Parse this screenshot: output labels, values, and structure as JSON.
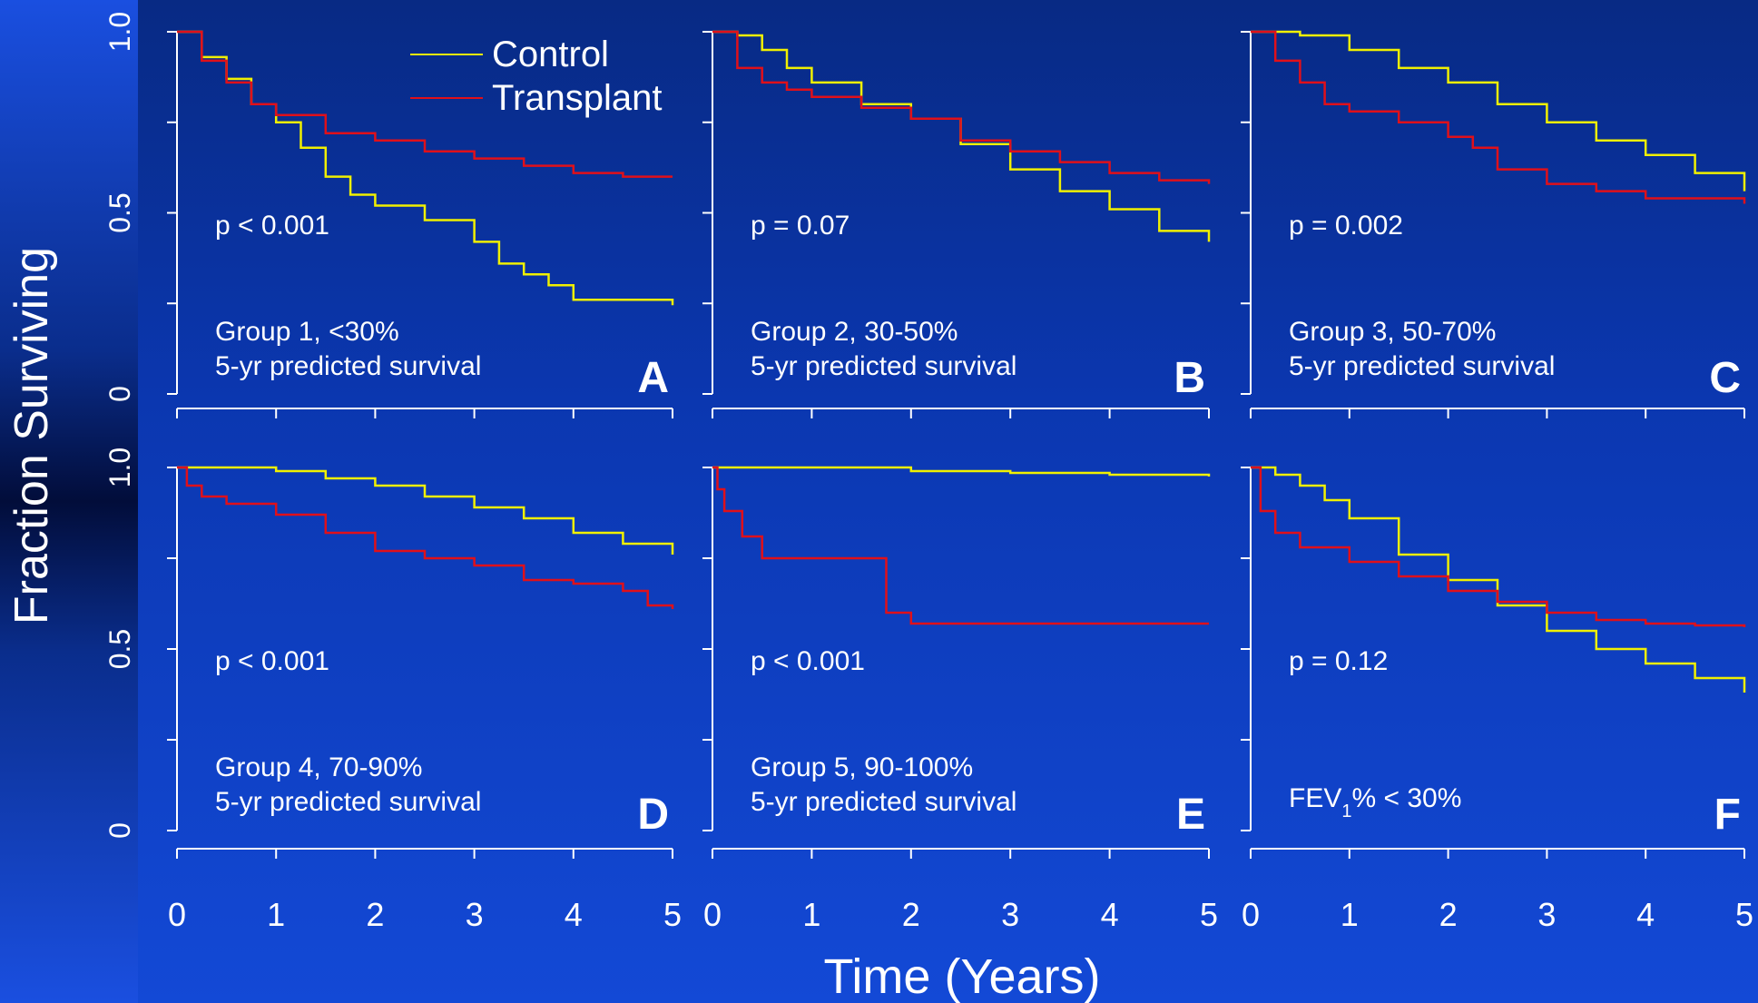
{
  "ylabel": "Fraction Surviving",
  "xlabel": "Time (Years)",
  "legend": {
    "control": "Control",
    "transplant": "Transplant"
  },
  "colors": {
    "control": "#f0f000",
    "transplant": "#e0101a",
    "axis": "#ffffff"
  },
  "chart_data": [
    {
      "type": "line",
      "panel": "A",
      "p": "p < 0.001",
      "group": "Group 1,  <30%",
      "group2": "5-yr predicted survival",
      "xlim": [
        0,
        5
      ],
      "ylim": [
        0,
        1
      ],
      "xticks": [
        "0",
        "1",
        "2",
        "3",
        "4",
        "5"
      ],
      "yticks": [
        "0",
        "0.5",
        "1.0"
      ],
      "series": [
        {
          "name": "Control",
          "x": [
            0,
            0.25,
            0.5,
            0.75,
            1.0,
            1.25,
            1.5,
            1.75,
            2.0,
            2.5,
            3.0,
            3.25,
            3.5,
            3.75,
            4.0,
            4.5,
            5.0
          ],
          "y": [
            1.0,
            0.93,
            0.87,
            0.8,
            0.75,
            0.68,
            0.6,
            0.55,
            0.52,
            0.48,
            0.42,
            0.36,
            0.33,
            0.3,
            0.26,
            0.26,
            0.245
          ]
        },
        {
          "name": "Transplant",
          "x": [
            0,
            0.25,
            0.5,
            0.75,
            1.0,
            1.5,
            2.0,
            2.5,
            3.0,
            3.5,
            4.0,
            4.5,
            5.0
          ],
          "y": [
            1.0,
            0.92,
            0.86,
            0.8,
            0.77,
            0.72,
            0.7,
            0.67,
            0.65,
            0.63,
            0.61,
            0.6,
            0.6
          ]
        }
      ]
    },
    {
      "type": "line",
      "panel": "B",
      "p": "p = 0.07",
      "group": "Group 2,  30-50%",
      "group2": "5-yr predicted survival",
      "xlim": [
        0,
        5
      ],
      "ylim": [
        0,
        1
      ],
      "xticks": [
        "0",
        "1",
        "2",
        "3",
        "4",
        "5"
      ],
      "yticks": [
        "0",
        "0.5",
        "1.0"
      ],
      "series": [
        {
          "name": "Control",
          "x": [
            0,
            0.25,
            0.5,
            0.75,
            1.0,
            1.5,
            2.0,
            2.5,
            3.0,
            3.5,
            4.0,
            4.5,
            5.0
          ],
          "y": [
            1.0,
            0.99,
            0.95,
            0.9,
            0.86,
            0.8,
            0.76,
            0.69,
            0.62,
            0.56,
            0.51,
            0.45,
            0.42
          ]
        },
        {
          "name": "Transplant",
          "x": [
            0,
            0.25,
            0.5,
            0.75,
            1.0,
            1.5,
            2.0,
            2.5,
            3.0,
            3.5,
            4.0,
            4.5,
            5.0
          ],
          "y": [
            1.0,
            0.9,
            0.86,
            0.84,
            0.82,
            0.79,
            0.76,
            0.7,
            0.67,
            0.64,
            0.61,
            0.59,
            0.58
          ]
        }
      ]
    },
    {
      "type": "line",
      "panel": "C",
      "p": "p = 0.002",
      "group": "Group 3,  50-70%",
      "group2": "5-yr predicted survival",
      "xlim": [
        0,
        5
      ],
      "ylim": [
        0,
        1
      ],
      "xticks": [
        "0",
        "1",
        "2",
        "3",
        "4",
        "5"
      ],
      "yticks": [
        "0",
        "0.5",
        "1.0"
      ],
      "series": [
        {
          "name": "Control",
          "x": [
            0,
            0.25,
            0.5,
            1.0,
            1.5,
            2.0,
            2.5,
            3.0,
            3.5,
            4.0,
            4.5,
            5.0
          ],
          "y": [
            1.0,
            1.0,
            0.99,
            0.95,
            0.9,
            0.86,
            0.8,
            0.75,
            0.7,
            0.66,
            0.61,
            0.56
          ]
        },
        {
          "name": "Transplant",
          "x": [
            0,
            0.25,
            0.5,
            0.75,
            1.0,
            1.5,
            2.0,
            2.25,
            2.5,
            3.0,
            3.5,
            4.0,
            5.0
          ],
          "y": [
            1.0,
            0.92,
            0.86,
            0.8,
            0.78,
            0.75,
            0.71,
            0.68,
            0.62,
            0.58,
            0.56,
            0.54,
            0.525
          ]
        }
      ]
    },
    {
      "type": "line",
      "panel": "D",
      "p": "p < 0.001",
      "group": "Group 4,  70-90%",
      "group2": "5-yr predicted survival",
      "xlim": [
        0,
        5
      ],
      "ylim": [
        0,
        1
      ],
      "xticks": [
        "0",
        "1",
        "2",
        "3",
        "4",
        "5"
      ],
      "yticks": [
        "0",
        "0.5",
        "1.0"
      ],
      "series": [
        {
          "name": "Control",
          "x": [
            0,
            0.5,
            1.0,
            1.5,
            2.0,
            2.5,
            3.0,
            3.5,
            4.0,
            4.5,
            5.0
          ],
          "y": [
            1.0,
            1.0,
            0.99,
            0.97,
            0.95,
            0.92,
            0.89,
            0.86,
            0.82,
            0.79,
            0.76
          ]
        },
        {
          "name": "Transplant",
          "x": [
            0,
            0.1,
            0.25,
            0.5,
            1.0,
            1.5,
            2.0,
            2.5,
            3.0,
            3.5,
            4.0,
            4.5,
            4.75,
            5.0
          ],
          "y": [
            1.0,
            0.95,
            0.92,
            0.9,
            0.87,
            0.82,
            0.77,
            0.75,
            0.73,
            0.69,
            0.68,
            0.66,
            0.62,
            0.61
          ]
        }
      ]
    },
    {
      "type": "line",
      "panel": "E",
      "p": "p < 0.001",
      "group": "Group 5,  90-100%",
      "group2": "5-yr predicted survival",
      "xlim": [
        0,
        5
      ],
      "ylim": [
        0,
        1
      ],
      "xticks": [
        "0",
        "1",
        "2",
        "3",
        "4",
        "5"
      ],
      "yticks": [
        "0",
        "0.5",
        "1.0"
      ],
      "series": [
        {
          "name": "Control",
          "x": [
            0,
            1.0,
            2.0,
            3.0,
            4.0,
            5.0
          ],
          "y": [
            1.0,
            1.0,
            0.99,
            0.985,
            0.98,
            0.975
          ]
        },
        {
          "name": "Transplant",
          "x": [
            0,
            0.05,
            0.12,
            0.3,
            0.5,
            1.0,
            1.75,
            2.0,
            3.0,
            5.0
          ],
          "y": [
            1.0,
            0.94,
            0.88,
            0.81,
            0.75,
            0.75,
            0.6,
            0.57,
            0.57,
            0.57
          ]
        }
      ]
    },
    {
      "type": "line",
      "panel": "F",
      "p": "p = 0.12",
      "fev": "FEV",
      "fev_sub": "1",
      "fev_rest": "% < 30%",
      "xlim": [
        0,
        5
      ],
      "ylim": [
        0,
        1
      ],
      "xticks": [
        "0",
        "1",
        "2",
        "3",
        "4",
        "5"
      ],
      "yticks": [
        "0",
        "0.5",
        "1.0"
      ],
      "series": [
        {
          "name": "Control",
          "x": [
            0,
            0.25,
            0.5,
            0.75,
            1.0,
            1.5,
            2.0,
            2.5,
            3.0,
            3.5,
            4.0,
            4.5,
            5.0
          ],
          "y": [
            1.0,
            0.98,
            0.95,
            0.91,
            0.86,
            0.76,
            0.69,
            0.62,
            0.55,
            0.5,
            0.46,
            0.42,
            0.38
          ]
        },
        {
          "name": "Transplant",
          "x": [
            0,
            0.1,
            0.25,
            0.5,
            1.0,
            1.5,
            2.0,
            2.5,
            3.0,
            3.5,
            4.0,
            4.5,
            5.0
          ],
          "y": [
            1.0,
            0.88,
            0.82,
            0.78,
            0.74,
            0.7,
            0.66,
            0.63,
            0.6,
            0.58,
            0.57,
            0.565,
            0.56
          ]
        }
      ]
    }
  ]
}
